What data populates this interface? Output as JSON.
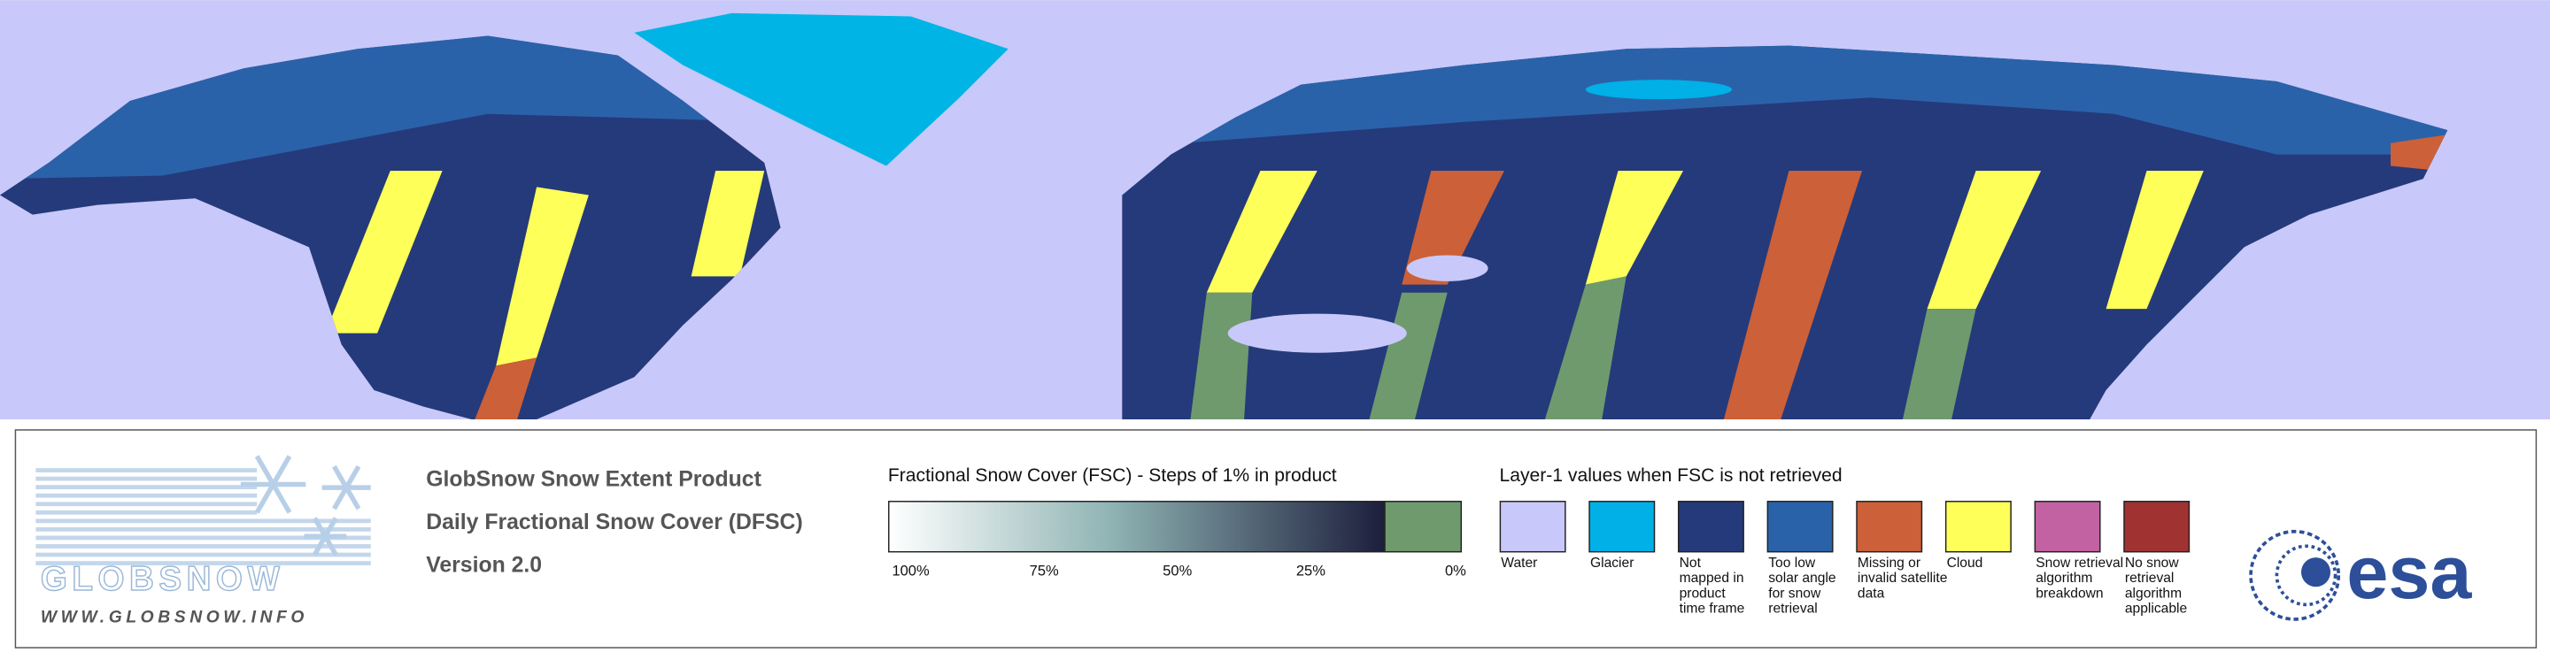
{
  "logo": {
    "name": "GLOBSNOW",
    "url": "WWW.GLOBSNOW.INFO"
  },
  "product": {
    "lines": [
      "GlobSnow Snow Extent Product",
      "Daily Fractional Snow Cover (DFSC)",
      "Version 2.0"
    ]
  },
  "fsc_legend": {
    "title": "Fractional Snow Cover (FSC) - Steps of 1% in product",
    "labels": [
      "100%",
      "75%",
      "50%",
      "25%",
      "0%"
    ],
    "gradient_start": "#ffffff",
    "gradient_end": "#1c1e3c",
    "zero_color": "#6f9a6e"
  },
  "layer_legend": {
    "title": "Layer-1 values when FSC is not retrieved",
    "items": [
      {
        "color": "#c8c8fa",
        "label": [
          "Water"
        ]
      },
      {
        "color": "#00b0e6",
        "label": [
          "Glacier"
        ]
      },
      {
        "color": "#253a7a",
        "label": [
          "Not",
          "mapped in",
          "product",
          "time frame"
        ]
      },
      {
        "color": "#2a62aa",
        "label": [
          "Too low",
          "solar angle",
          "for snow",
          "retrieval"
        ]
      },
      {
        "color": "#cc6038",
        "label": [
          "Missing or",
          "invalid satellite",
          "data"
        ]
      },
      {
        "color": "#ffff5a",
        "label": [
          "Cloud"
        ]
      },
      {
        "color": "#c262a2",
        "label": [
          "Snow retrieval",
          "algorithm",
          "breakdown"
        ]
      },
      {
        "color": "#a03232",
        "label": [
          "No snow",
          "retrieval",
          "algorithm",
          "applicable"
        ]
      }
    ]
  },
  "agency": {
    "name": "esa"
  }
}
